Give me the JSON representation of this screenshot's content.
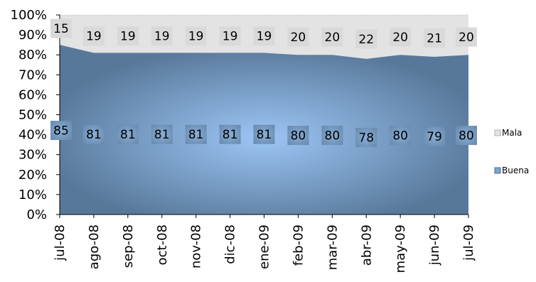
{
  "chart_data": {
    "type": "area",
    "stacked": true,
    "percent": true,
    "categories": [
      "jul-08",
      "ago-08",
      "sep-08",
      "oct-08",
      "nov-08",
      "dic-08",
      "ene-09",
      "feb-09",
      "mar-09",
      "abr-09",
      "may-09",
      "jun-09",
      "jul-09"
    ],
    "series": [
      {
        "name": "Buena",
        "values": [
          85,
          81,
          81,
          81,
          81,
          81,
          81,
          80,
          80,
          78,
          80,
          79,
          80
        ],
        "color": "#5e7f9f"
      },
      {
        "name": "Mala",
        "values": [
          15,
          19,
          19,
          19,
          19,
          19,
          19,
          20,
          20,
          22,
          20,
          21,
          20
        ],
        "color": "#e3e3e3"
      }
    ],
    "ylim": [
      0,
      100
    ],
    "yticks": [
      "0%",
      "10%",
      "20%",
      "30%",
      "40%",
      "50%",
      "60%",
      "70%",
      "80%",
      "90%",
      "100%"
    ],
    "legend_position": "right",
    "grid": false,
    "data_labels": true
  }
}
